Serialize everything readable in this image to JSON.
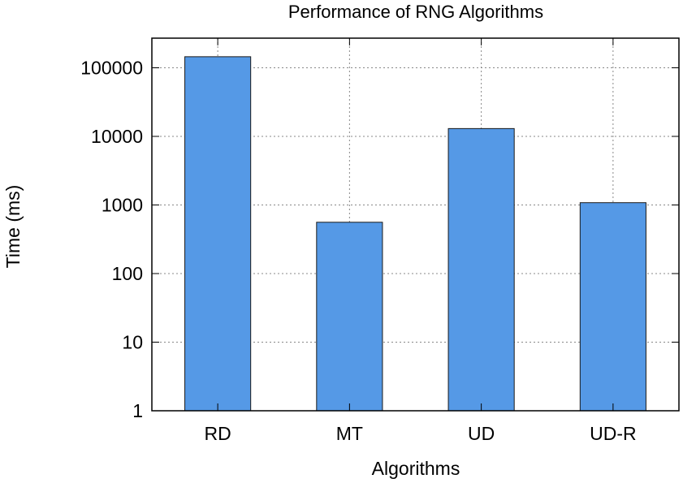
{
  "chart_data": {
    "type": "bar",
    "title": "Performance of RNG Algorithms",
    "xlabel": "Algorithms",
    "ylabel": "Time (ms)",
    "categories": [
      "RD",
      "MT",
      "UD",
      "UD-R"
    ],
    "values": [
      145000,
      560,
      13000,
      1080
    ],
    "yscale": "log",
    "ylim": [
      1,
      300000
    ],
    "yticks": [
      1,
      10,
      100,
      1000,
      10000,
      100000
    ],
    "ytick_labels": [
      "1",
      "10",
      "100",
      "1000",
      "10000",
      "100000"
    ],
    "grid": true,
    "bar_color": "#5599e6"
  }
}
